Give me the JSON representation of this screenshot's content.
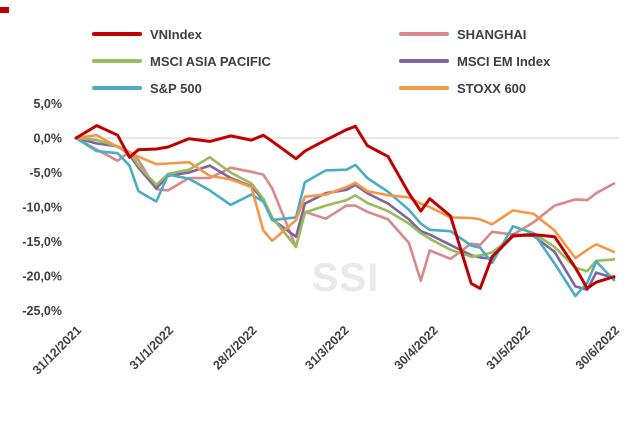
{
  "watermark": "SSI",
  "legend": {
    "columns": [
      [
        {
          "label": "VNIndex",
          "color": "#C00000"
        },
        {
          "label": "MSCI ASIA PACIFIC",
          "color": "#9BBB59"
        },
        {
          "label": "S&P 500",
          "color": "#4BACC6"
        }
      ],
      [
        {
          "label": "SHANGHAI",
          "color": "#DB878B"
        },
        {
          "label": "MSCI EM Index",
          "color": "#8064A2"
        },
        {
          "label": "STOXX 600",
          "color": "#F79646"
        }
      ]
    ]
  },
  "chart_data": {
    "type": "line",
    "title": "",
    "values_are": "percent change since 31/12/2021",
    "x_axis": {
      "total_days": 181,
      "ticks": [
        {
          "label": "31/12/2021",
          "day": 0
        },
        {
          "label": "31/1/2022",
          "day": 31
        },
        {
          "label": "28/2/2022",
          "day": 59
        },
        {
          "label": "31/3/2022",
          "day": 90
        },
        {
          "label": "30/4/2022",
          "day": 120
        },
        {
          "label": "31/5/2022",
          "day": 151
        },
        {
          "label": "30/6/2022",
          "day": 181
        }
      ]
    },
    "y_axis": {
      "min": -25,
      "max": 5,
      "unit": "%",
      "ticks": [
        {
          "label": "5,0%",
          "value": 5
        },
        {
          "label": "0,0%",
          "value": 0
        },
        {
          "label": "-5,0%",
          "value": -5
        },
        {
          "label": "-10,0%",
          "value": -10
        },
        {
          "label": "-15,0%",
          "value": -15
        },
        {
          "label": "-20,0%",
          "value": -20
        },
        {
          "label": "-25,0%",
          "value": -25
        }
      ]
    },
    "gridlines_at": [
      0
    ],
    "x_days": [
      0,
      7,
      14,
      18,
      21,
      27,
      31,
      38,
      45,
      52,
      59,
      63,
      66,
      74,
      77,
      84,
      91,
      94,
      98,
      105,
      112,
      116,
      119,
      126,
      133,
      136,
      140,
      147,
      154,
      161,
      168,
      172,
      175,
      181
    ],
    "series": [
      {
        "name": "VNIndex",
        "color": "#C00000",
        "values": [
          0,
          1.8,
          0.4,
          -2.8,
          -1.7,
          -1.6,
          -1.3,
          -0.1,
          -0.5,
          0.3,
          -0.3,
          0.4,
          -0.5,
          -3.0,
          -1.9,
          -0.3,
          1.2,
          1.7,
          -1.1,
          -2.7,
          -8.0,
          -10.6,
          -8.8,
          -11.3,
          -21.1,
          -21.8,
          -17.2,
          -14.2,
          -14.0,
          -14.3,
          -18.8,
          -21.8,
          -20.9,
          -20.1
        ]
      },
      {
        "name": "SHANGHAI",
        "color": "#DB878B",
        "values": [
          0,
          -1.7,
          -3.3,
          -2.0,
          -3.2,
          -7.4,
          -7.6,
          -5.8,
          -5.8,
          -4.3,
          -4.9,
          -5.3,
          -7.3,
          -15.8,
          -10.7,
          -11.7,
          -9.8,
          -9.8,
          -10.7,
          -11.8,
          -15.2,
          -20.7,
          -16.3,
          -17.5,
          -15.3,
          -15.5,
          -13.6,
          -14.0,
          -12.2,
          -9.8,
          -8.9,
          -9.0,
          -8.0,
          -6.6
        ]
      },
      {
        "name": "MSCI ASIA PACIFIC",
        "color": "#9BBB59",
        "values": [
          0,
          -0.3,
          -1.2,
          -2.0,
          -4.0,
          -6.8,
          -5.2,
          -4.6,
          -2.8,
          -5.0,
          -6.6,
          -8.8,
          -11.5,
          -15.8,
          -10.8,
          -9.8,
          -9.0,
          -8.3,
          -9.4,
          -10.6,
          -12.4,
          -13.8,
          -14.6,
          -16.2,
          -17.2,
          -17.0,
          -16.6,
          -14.2,
          -13.8,
          -15.8,
          -18.8,
          -19.3,
          -17.8,
          -17.6
        ]
      },
      {
        "name": "MSCI EM Index",
        "color": "#8064A2",
        "values": [
          0,
          -0.8,
          -1.2,
          -2.4,
          -4.3,
          -7.3,
          -5.5,
          -5.0,
          -4.0,
          -5.8,
          -7.0,
          -9.0,
          -11.8,
          -14.3,
          -9.5,
          -8.0,
          -7.5,
          -6.8,
          -8.0,
          -9.5,
          -11.8,
          -13.5,
          -14.0,
          -15.5,
          -17.0,
          -17.3,
          -17.5,
          -14.0,
          -14.2,
          -16.5,
          -21.5,
          -22.0,
          -19.5,
          -20.3
        ]
      },
      {
        "name": "S&P 500",
        "color": "#4BACC6",
        "values": [
          0,
          -1.9,
          -2.2,
          -4.0,
          -7.7,
          -9.2,
          -5.3,
          -5.9,
          -7.6,
          -9.7,
          -8.2,
          -9.2,
          -11.9,
          -11.5,
          -6.4,
          -4.7,
          -4.6,
          -3.9,
          -5.8,
          -7.8,
          -10.4,
          -12.4,
          -13.3,
          -13.5,
          -15.6,
          -15.9,
          -18.1,
          -12.8,
          -13.8,
          -18.2,
          -22.9,
          -21.0,
          -17.9,
          -20.6
        ]
      },
      {
        "name": "STOXX 600",
        "color": "#F79646",
        "values": [
          0,
          0.4,
          -1.3,
          -2.2,
          -2.7,
          -3.8,
          -3.7,
          -3.5,
          -5.5,
          -6.0,
          -7.1,
          -13.4,
          -14.9,
          -11.9,
          -8.5,
          -8.2,
          -7.1,
          -6.5,
          -7.7,
          -8.3,
          -8.6,
          -9.5,
          -10.0,
          -11.5,
          -11.6,
          -11.8,
          -12.5,
          -10.5,
          -11.0,
          -13.4,
          -17.4,
          -16.2,
          -15.4,
          -16.5
        ]
      }
    ],
    "draw_order": [
      "SHANGHAI",
      "MSCI EM Index",
      "MSCI ASIA PACIFIC",
      "S&P 500",
      "STOXX 600",
      "VNIndex"
    ],
    "legend_position": "top",
    "grid": "horizontal-zero-line-only"
  }
}
